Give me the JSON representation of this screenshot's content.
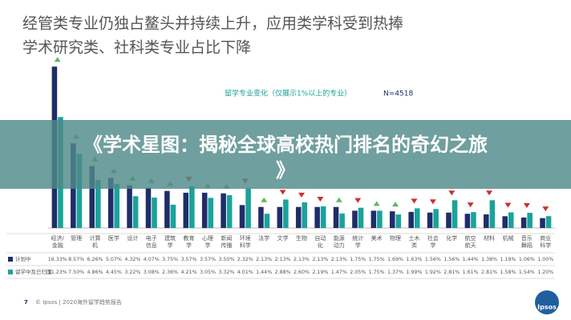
{
  "chart_data": {
    "type": "bar",
    "title": "经管类专业仍独占鳌头并持续上升，应用类学科受到热捧",
    "subtitle": "学术研究类、社科类专业占比下降",
    "annotations": [
      "留学专业变化（仅展示1%以上的专业）",
      "N=4518"
    ],
    "categories": [
      "经济/金融",
      "管理",
      "计算机",
      "医学",
      "设计",
      "电子信息",
      "建筑学",
      "教育学",
      "心理学",
      "新闻传播",
      "环境科学",
      "法学",
      "文学",
      "生物",
      "自动化",
      "能源动力",
      "统计学",
      "美术",
      "物理",
      "土木类",
      "社会学",
      "化学",
      "航空航天",
      "材料",
      "机械",
      "音乐舞蹈",
      "商业科学"
    ],
    "series": [
      {
        "name": "计划中",
        "color": "#1f2d6b",
        "values": [
          16.33,
          8.57,
          6.26,
          5.07,
          4.32,
          4.07,
          3.75,
          3.57,
          3.57,
          3.5,
          2.32,
          2.13,
          2.13,
          2.13,
          2.13,
          2.13,
          1.75,
          1.75,
          1.69,
          1.63,
          1.56,
          1.56,
          1.44,
          1.38,
          1.19,
          1.06,
          1.0
        ],
        "value_labels": [
          "16.33%",
          "8.57%",
          "6.26%",
          "5.07%",
          "4.32%",
          "4.07%",
          "3.75%",
          "3.57%",
          "3.57%",
          "3.50%",
          "2.32%",
          "2.13%",
          "2.13%",
          "2.13%",
          "2.13%",
          "2.13%",
          "1.75%",
          "1.75%",
          "1.69%",
          "1.63%",
          "1.56%",
          "1.56%",
          "1.44%",
          "1.38%",
          "1.19%",
          "1.06%",
          "1.00%"
        ]
      },
      {
        "name": "留学中及已归国",
        "color": "#1aa39a",
        "values": [
          11.23,
          7.5,
          4.86,
          4.45,
          3.22,
          3.08,
          2.36,
          4.21,
          3.05,
          3.32,
          4.01,
          1.44,
          2.88,
          2.6,
          2.19,
          1.47,
          2.05,
          1.75,
          1.37,
          1.99,
          1.92,
          2.81,
          1.61,
          2.81,
          1.58,
          1.54,
          1.2
        ],
        "value_labels": [
          "11.23%",
          "7.50%",
          "4.86%",
          "4.45%",
          "3.22%",
          "3.08%",
          "2.36%",
          "4.21%",
          "3.05%",
          "3.32%",
          "4.01%",
          "1.44%",
          "2.88%",
          "2.60%",
          "2.19%",
          "1.47%",
          "2.05%",
          "1.75%",
          "1.37%",
          "1.99%",
          "1.92%",
          "2.81%",
          "1.61%",
          "2.81%",
          "1.58%",
          "1.54%",
          "1.20%"
        ]
      }
    ],
    "ylim": [
      0,
      17
    ]
  },
  "footer": {
    "page": "7",
    "source": "© Ipsos | 2020海外留学趋势报告",
    "logo": "Ipsos"
  },
  "banner": {
    "title": "《学术星图：揭秘全球高校热门排名的奇幻之旅》"
  }
}
